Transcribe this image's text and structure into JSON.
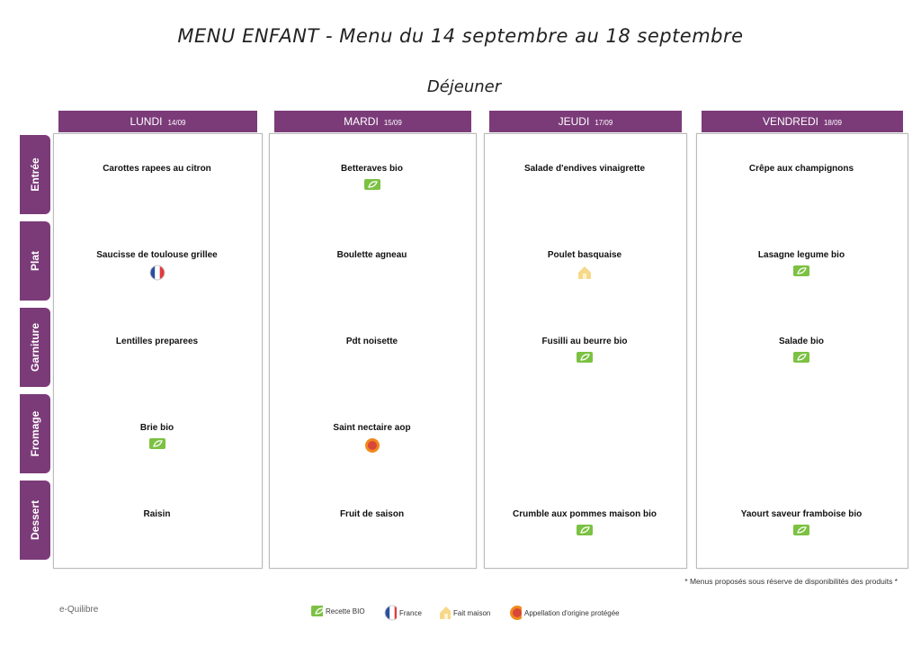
{
  "title": "MENU ENFANT - Menu du 14 septembre au 18 septembre",
  "subtitle": "Déjeuner",
  "days": [
    {
      "name": "LUNDI",
      "date": "14/09"
    },
    {
      "name": "MARDI",
      "date": "15/09"
    },
    {
      "name": "JEUDI",
      "date": "17/09"
    },
    {
      "name": "VENDREDI",
      "date": "18/09"
    }
  ],
  "courses": [
    "Entrée",
    "Plat",
    "Garniture",
    "Fromage",
    "Dessert"
  ],
  "cells": [
    [
      {
        "text": "Carottes rapees au citron",
        "icons": []
      },
      {
        "text": "Saucisse de toulouse grillee",
        "icons": [
          "france"
        ]
      },
      {
        "text": "Lentilles preparees",
        "icons": []
      },
      {
        "text": "Brie bio",
        "icons": [
          "bio"
        ]
      },
      {
        "text": "Raisin",
        "icons": []
      }
    ],
    [
      {
        "text": "Betteraves bio",
        "icons": [
          "bio"
        ]
      },
      {
        "text": "Boulette agneau",
        "icons": []
      },
      {
        "text": "Pdt noisette",
        "icons": []
      },
      {
        "text": "Saint nectaire aop",
        "icons": [
          "aop"
        ]
      },
      {
        "text": "Fruit de saison",
        "icons": []
      }
    ],
    [
      {
        "text": "Salade d'endives vinaigrette",
        "icons": []
      },
      {
        "text": "Poulet basquaise",
        "icons": [
          "maison"
        ]
      },
      {
        "text": "Fusilli au beurre bio",
        "icons": [
          "bio"
        ]
      },
      null,
      {
        "text": "Crumble aux pommes maison bio",
        "icons": [
          "bio"
        ]
      }
    ],
    [
      {
        "text": "Crêpe aux champignons",
        "icons": []
      },
      {
        "text": "Lasagne legume bio",
        "icons": [
          "bio"
        ]
      },
      {
        "text": "Salade bio",
        "icons": [
          "bio"
        ]
      },
      null,
      {
        "text": "Yaourt saveur framboise bio",
        "icons": [
          "bio"
        ]
      }
    ]
  ],
  "note": "* Menus proposés sous réserve de disponibilités des produits *",
  "legend": [
    {
      "icon": "bio",
      "label": "Recette BIO"
    },
    {
      "icon": "france",
      "label": "France"
    },
    {
      "icon": "maison",
      "label": "Fait maison"
    },
    {
      "icon": "aop",
      "label": "Appellation d'origine protégée"
    }
  ],
  "brand": "e-Quilibre"
}
